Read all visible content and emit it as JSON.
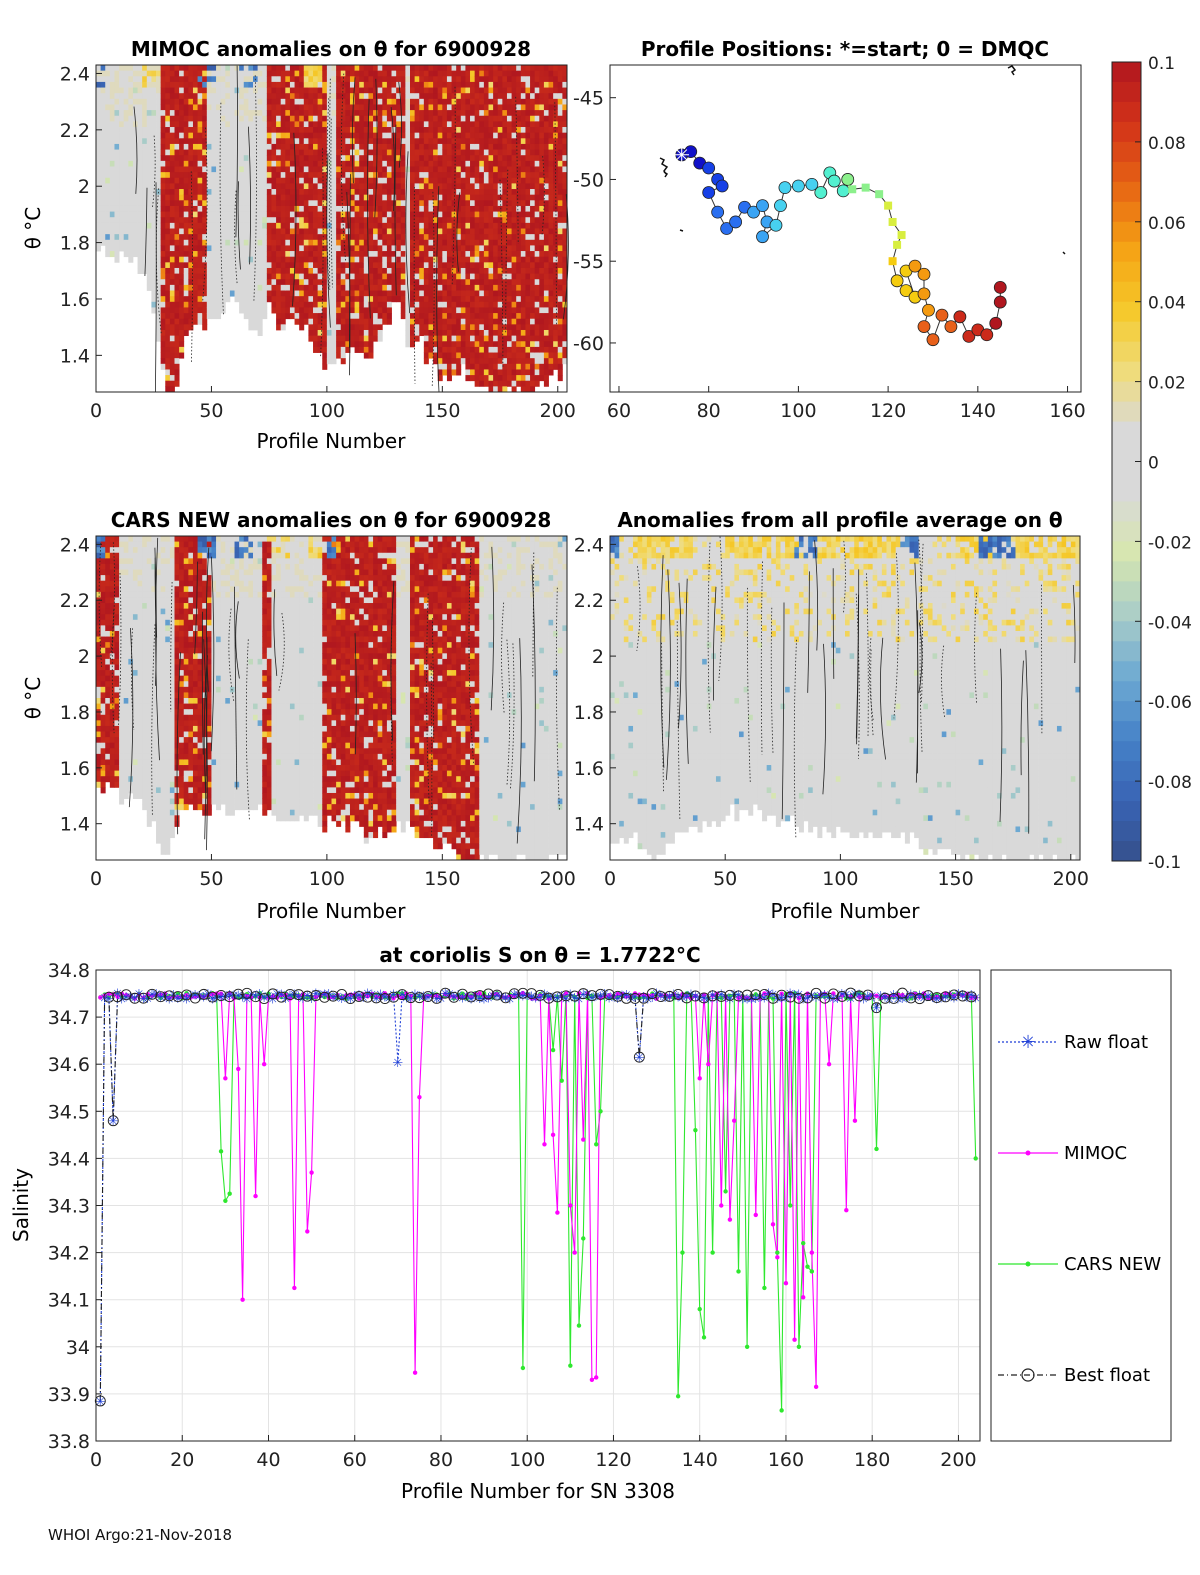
{
  "footer": "WHOI Argo:21-Nov-2018",
  "colors": {
    "raw": "#1f3fd6",
    "mimoc": "#ff00ff",
    "cars": "#2ee82e",
    "best": "#222222",
    "anom_red": "#b0171f",
    "anom_gray": "#d9d9d9"
  },
  "chart_data": [
    {
      "id": "mimoc",
      "type": "heatmap",
      "title": "MIMOC anomalies on θ  for 6900928",
      "xlabel": "Profile Number",
      "ylabel": "θ °C",
      "xlim": [
        0,
        204
      ],
      "ylim": [
        1.27,
        2.43
      ],
      "xticks": [
        "0",
        "50",
        "100",
        "150",
        "200"
      ],
      "yticks": [
        "1.4",
        "1.6",
        "1.8",
        "2",
        "2.2",
        "2.4"
      ],
      "seed": 7,
      "red_ranges": [
        [
          29,
          47
        ],
        [
          74,
          100
        ],
        [
          104,
          133
        ],
        [
          137,
          204
        ]
      ],
      "top_blue_ranges": [
        [
          0,
          4
        ],
        [
          45,
          52
        ],
        [
          62,
          70
        ]
      ],
      "top_yellow_ranges": [
        [
          20,
          28
        ],
        [
          90,
          98
        ]
      ],
      "bottom_profile_theta": [
        [
          0,
          1.78
        ],
        [
          10,
          1.75
        ],
        [
          20,
          1.7
        ],
        [
          25,
          1.55
        ],
        [
          30,
          1.27
        ],
        [
          35,
          1.3
        ],
        [
          40,
          1.5
        ],
        [
          50,
          1.5
        ],
        [
          60,
          1.6
        ],
        [
          70,
          1.45
        ],
        [
          75,
          1.6
        ],
        [
          80,
          1.5
        ],
        [
          90,
          1.5
        ],
        [
          100,
          1.35
        ],
        [
          110,
          1.4
        ],
        [
          120,
          1.4
        ],
        [
          130,
          1.6
        ],
        [
          135,
          1.45
        ],
        [
          140,
          1.45
        ],
        [
          150,
          1.3
        ],
        [
          160,
          1.35
        ],
        [
          170,
          1.27
        ],
        [
          180,
          1.27
        ],
        [
          190,
          1.27
        ],
        [
          204,
          1.35
        ]
      ]
    },
    {
      "id": "positions",
      "type": "scatter",
      "title": "Profile Positions: *=start; 0 = DMQC",
      "xlim": [
        58,
        163
      ],
      "ylim": [
        -63,
        -43
      ],
      "xticks": [
        60,
        80,
        100,
        120,
        140,
        160
      ],
      "yticks": [
        -45,
        -50,
        -55,
        -60
      ],
      "start": [
        74,
        -48.5
      ],
      "track": [
        [
          74,
          -48.5
        ],
        [
          76,
          -48.3
        ],
        [
          78,
          -49.0
        ],
        [
          80,
          -49.3
        ],
        [
          82,
          -50.0
        ],
        [
          83,
          -50.4
        ],
        [
          80,
          -50.8
        ],
        [
          82,
          -52.0
        ],
        [
          84,
          -53.0
        ],
        [
          86,
          -52.6
        ],
        [
          88,
          -51.7
        ],
        [
          90,
          -52.0
        ],
        [
          92,
          -51.6
        ],
        [
          93,
          -52.6
        ],
        [
          92,
          -53.5
        ],
        [
          95,
          -52.8
        ],
        [
          96,
          -51.6
        ],
        [
          97,
          -50.5
        ],
        [
          100,
          -50.4
        ],
        [
          103,
          -50.3
        ],
        [
          105,
          -50.8
        ],
        [
          107,
          -49.6
        ],
        [
          108,
          -50.1
        ],
        [
          110,
          -50.7
        ],
        [
          111,
          -50.0
        ],
        [
          112,
          -50.6
        ],
        [
          115,
          -50.5
        ],
        [
          118,
          -50.9
        ],
        [
          120,
          -51.6
        ],
        [
          121,
          -52.6
        ],
        [
          123,
          -53.4
        ],
        [
          122,
          -54.0
        ],
        [
          121,
          -55.0
        ],
        [
          122,
          -56.2
        ],
        [
          124,
          -56.8
        ],
        [
          126,
          -57.2
        ],
        [
          124,
          -55.6
        ],
        [
          126,
          -55.3
        ],
        [
          128,
          -55.8
        ],
        [
          128,
          -57.0
        ],
        [
          129,
          -58.0
        ],
        [
          128,
          -59.0
        ],
        [
          130,
          -59.8
        ],
        [
          132,
          -58.3
        ],
        [
          134,
          -59.0
        ],
        [
          136,
          -58.4
        ],
        [
          138,
          -59.6
        ],
        [
          140,
          -59.2
        ],
        [
          142,
          -59.5
        ],
        [
          144,
          -58.8
        ],
        [
          145,
          -57.5
        ],
        [
          145,
          -56.6
        ]
      ],
      "markers": [
        "circle",
        "circle",
        "circle",
        "circle",
        "circle",
        "circle",
        "circle",
        "circle",
        "circle",
        "circle",
        "circle",
        "circle",
        "circle",
        "circle",
        "circle",
        "circle",
        "circle",
        "circle",
        "circle",
        "circle",
        "circle",
        "circle",
        "circle",
        "circle",
        "circle",
        "square",
        "square",
        "square",
        "square",
        "square",
        "square",
        "square",
        "square",
        "circle",
        "circle",
        "circle",
        "circle",
        "circle",
        "circle",
        "circle",
        "circle",
        "circle",
        "circle",
        "circle",
        "circle",
        "circle",
        "circle",
        "circle",
        "circle",
        "circle",
        "circle",
        "circle"
      ]
    },
    {
      "id": "colorbar",
      "type": "colorbar",
      "range": [
        -0.1,
        0.1
      ],
      "ticks": [
        "0.1",
        "0.08",
        "0.06",
        "0.04",
        "0.02",
        "0",
        "-0.02",
        "-0.04",
        "-0.06",
        "-0.08",
        "-0.1"
      ]
    },
    {
      "id": "cars",
      "type": "heatmap",
      "title": "CARS NEW anomalies on θ for 6900928",
      "xlabel": "Profile Number",
      "ylabel": "θ °C",
      "xlim": [
        0,
        204
      ],
      "ylim": [
        1.27,
        2.43
      ],
      "xticks": [
        "0",
        "50",
        "100",
        "150",
        "200"
      ],
      "yticks": [
        "1.4",
        "1.6",
        "1.8",
        "2",
        "2.2",
        "2.4"
      ],
      "seed": 13,
      "red_ranges": [
        [
          0,
          10
        ],
        [
          35,
          50
        ],
        [
          72,
          76
        ],
        [
          98,
          130
        ],
        [
          136,
          166
        ]
      ],
      "top_blue_ranges": [
        [
          0,
          3
        ],
        [
          45,
          52
        ],
        [
          60,
          68
        ],
        [
          100,
          106
        ]
      ],
      "top_yellow_ranges": [
        [
          76,
          84
        ],
        [
          92,
          98
        ]
      ],
      "bottom_profile_theta": [
        [
          0,
          1.55
        ],
        [
          10,
          1.5
        ],
        [
          20,
          1.45
        ],
        [
          25,
          1.4
        ],
        [
          30,
          1.27
        ],
        [
          35,
          1.4
        ],
        [
          40,
          1.45
        ],
        [
          60,
          1.45
        ],
        [
          75,
          1.45
        ],
        [
          90,
          1.4
        ],
        [
          100,
          1.4
        ],
        [
          110,
          1.4
        ],
        [
          120,
          1.35
        ],
        [
          130,
          1.4
        ],
        [
          140,
          1.35
        ],
        [
          150,
          1.33
        ],
        [
          160,
          1.27
        ],
        [
          170,
          1.27
        ],
        [
          204,
          1.27
        ]
      ]
    },
    {
      "id": "allavg",
      "type": "heatmap",
      "title": "Anomalies from all profile average on θ",
      "xlabel": "Profile Number",
      "ylabel": "",
      "xlim": [
        0,
        204
      ],
      "ylim": [
        1.27,
        2.43
      ],
      "xticks": [
        "0",
        "50",
        "100",
        "150",
        "200"
      ],
      "yticks": [
        "1.4",
        "1.6",
        "1.8",
        "2",
        "2.2",
        "2.4"
      ],
      "seed": 21,
      "red_ranges": [],
      "top_blue_ranges": [
        [
          0,
          3
        ],
        [
          80,
          90
        ],
        [
          126,
          134
        ],
        [
          160,
          175
        ]
      ],
      "top_yellow_ranges": [
        [
          10,
          35
        ],
        [
          50,
          70
        ],
        [
          72,
          100
        ],
        [
          100,
          125
        ],
        [
          150,
          165
        ],
        [
          170,
          204
        ]
      ],
      "bottom_profile_theta": [
        [
          0,
          1.35
        ],
        [
          10,
          1.35
        ],
        [
          20,
          1.27
        ],
        [
          30,
          1.35
        ],
        [
          40,
          1.4
        ],
        [
          60,
          1.45
        ],
        [
          80,
          1.4
        ],
        [
          100,
          1.35
        ],
        [
          110,
          1.35
        ],
        [
          120,
          1.35
        ],
        [
          130,
          1.35
        ],
        [
          140,
          1.3
        ],
        [
          150,
          1.27
        ],
        [
          160,
          1.27
        ],
        [
          204,
          1.27
        ]
      ]
    },
    {
      "id": "salinity",
      "type": "line",
      "title": "at coriolis S on θ = 1.7722°C",
      "xlabel": "Profile Number for SN 3308",
      "ylabel": "Salinity",
      "xlim": [
        0,
        205
      ],
      "ylim": [
        33.8,
        34.8
      ],
      "xticks": [
        0,
        20,
        40,
        60,
        80,
        100,
        120,
        140,
        160,
        180,
        200
      ],
      "yticks": [
        "34.8",
        "34.7",
        "34.6",
        "34.5",
        "34.4",
        "34.3",
        "34.2",
        "34.1",
        "34",
        "33.9",
        "33.8"
      ],
      "legend": [
        "Raw float",
        "MIMOC",
        "CARS NEW",
        "Best float"
      ],
      "baseline": 34.745,
      "raw_dips": [
        [
          1,
          33.885
        ],
        [
          4,
          34.48
        ],
        [
          70,
          34.605
        ],
        [
          126,
          34.615
        ],
        [
          181,
          34.72
        ]
      ],
      "best_dips": [
        [
          1,
          33.885
        ],
        [
          4,
          34.48
        ],
        [
          126,
          34.615
        ],
        [
          181,
          34.72
        ]
      ],
      "mimoc_dips": [
        [
          30,
          34.57
        ],
        [
          33,
          34.59
        ],
        [
          34,
          34.1
        ],
        [
          37,
          34.32
        ],
        [
          39,
          34.6
        ],
        [
          46,
          34.125
        ],
        [
          49,
          34.245
        ],
        [
          50,
          34.37
        ],
        [
          74,
          33.945
        ],
        [
          75,
          34.53
        ],
        [
          104,
          34.43
        ],
        [
          106,
          34.45
        ],
        [
          107,
          34.285
        ],
        [
          110,
          34.3
        ],
        [
          111,
          34.2
        ],
        [
          113,
          34.44
        ],
        [
          115,
          33.93
        ],
        [
          116,
          33.935
        ],
        [
          140,
          34.57
        ],
        [
          142,
          34.6
        ],
        [
          145,
          34.3
        ],
        [
          147,
          34.27
        ],
        [
          148,
          34.48
        ],
        [
          153,
          34.28
        ],
        [
          157,
          34.26
        ],
        [
          158,
          34.19
        ],
        [
          160,
          34.135
        ],
        [
          162,
          34.015
        ],
        [
          164,
          34.105
        ],
        [
          166,
          34.2
        ],
        [
          167,
          33.915
        ],
        [
          170,
          34.6
        ],
        [
          174,
          34.29
        ],
        [
          176,
          34.48
        ]
      ],
      "cars_dips": [
        [
          29,
          34.415
        ],
        [
          30,
          34.31
        ],
        [
          31,
          34.325
        ],
        [
          99,
          33.955
        ],
        [
          106,
          34.63
        ],
        [
          108,
          34.565
        ],
        [
          110,
          33.96
        ],
        [
          112,
          34.045
        ],
        [
          113,
          34.23
        ],
        [
          116,
          34.43
        ],
        [
          117,
          34.5
        ],
        [
          135,
          33.895
        ],
        [
          136,
          34.2
        ],
        [
          139,
          34.46
        ],
        [
          140,
          34.08
        ],
        [
          141,
          34.02
        ],
        [
          143,
          34.2
        ],
        [
          146,
          34.33
        ],
        [
          149,
          34.16
        ],
        [
          151,
          34.0
        ],
        [
          155,
          34.125
        ],
        [
          158,
          34.2
        ],
        [
          159,
          33.865
        ],
        [
          161,
          34.3
        ],
        [
          163,
          34.0
        ],
        [
          164,
          34.22
        ],
        [
          165,
          34.17
        ],
        [
          166,
          34.16
        ],
        [
          181,
          34.42
        ],
        [
          204,
          34.4
        ]
      ]
    }
  ]
}
